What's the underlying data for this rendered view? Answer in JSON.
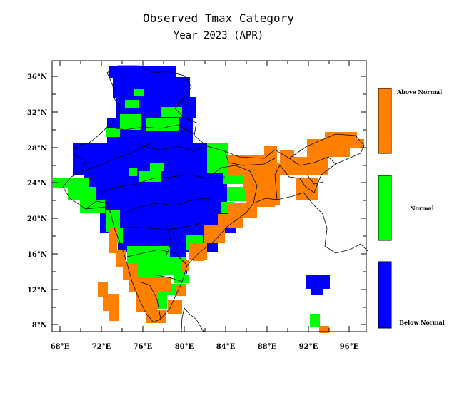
{
  "title": "Observed Tmax Category",
  "subtitle": "Year 2023 (APR)",
  "lat_ticks": [
    "36°N",
    "32°N",
    "28°N",
    "24°N",
    "20°N",
    "16°N",
    "12°N",
    "8°N"
  ],
  "lon_ticks": [
    "68°E",
    "72°E",
    "76°E",
    "80°E",
    "84°E",
    "88°E",
    "92°E",
    "96°E"
  ],
  "legend": [
    {
      "label": "Above Normal",
      "color": "#ff8000"
    },
    {
      "label": "Normal",
      "color": "#00ff00"
    },
    {
      "label": "Below Normal",
      "color": "#0000ff"
    }
  ],
  "colors": {
    "above": "#ff8000",
    "normal": "#00ff00",
    "below": "#0000ff",
    "boundary": "#000000"
  }
}
